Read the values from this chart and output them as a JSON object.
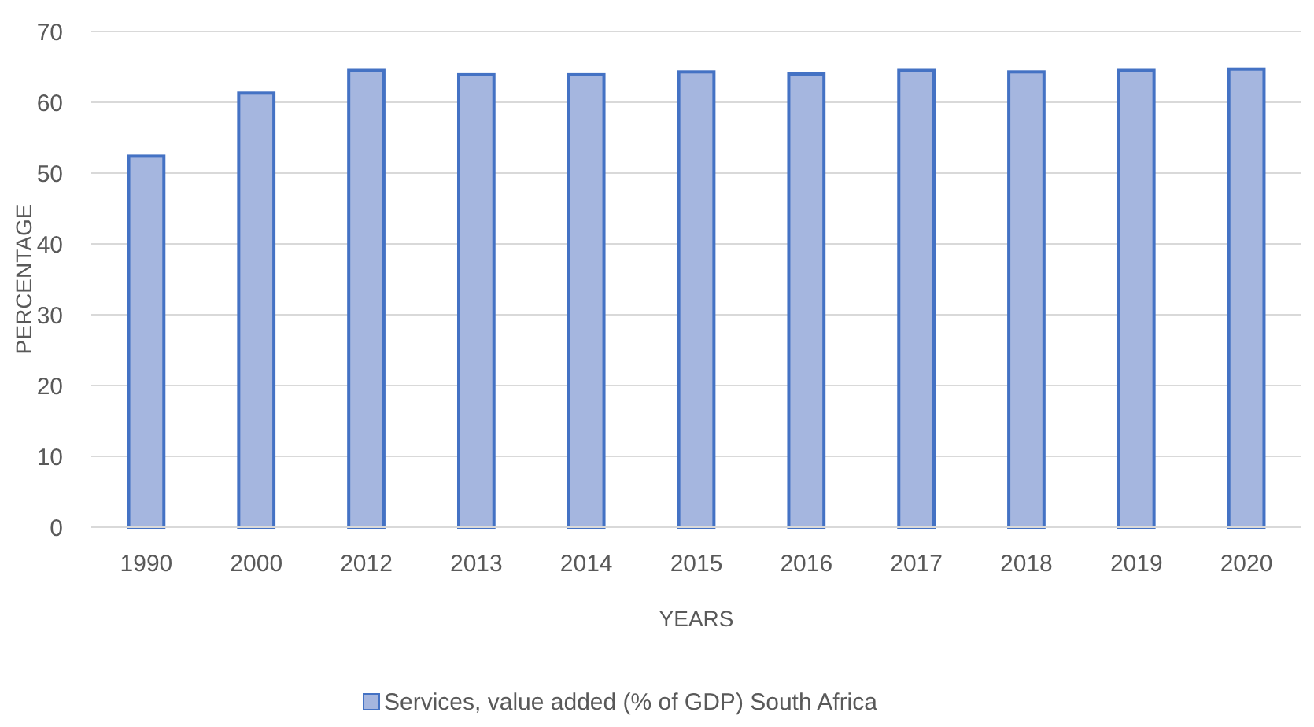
{
  "chart_data": {
    "type": "bar",
    "xlabel": "YEARS",
    "ylabel": "PERCENTAGE",
    "categories": [
      "1990",
      "2000",
      "2012",
      "2013",
      "2014",
      "2015",
      "2016",
      "2017",
      "2018",
      "2019",
      "2020"
    ],
    "series": [
      {
        "name": "Services, value added (% of GDP) South Africa",
        "color": "#a5b6df",
        "values": [
          52.4,
          61.3,
          64.5,
          63.9,
          63.9,
          64.3,
          64.0,
          64.5,
          64.3,
          64.5,
          64.7
        ]
      }
    ],
    "ylim": [
      0,
      70
    ],
    "yticks": [
      0,
      10,
      20,
      30,
      40,
      50,
      60,
      70
    ],
    "grid": "y",
    "legend": "bottom"
  }
}
